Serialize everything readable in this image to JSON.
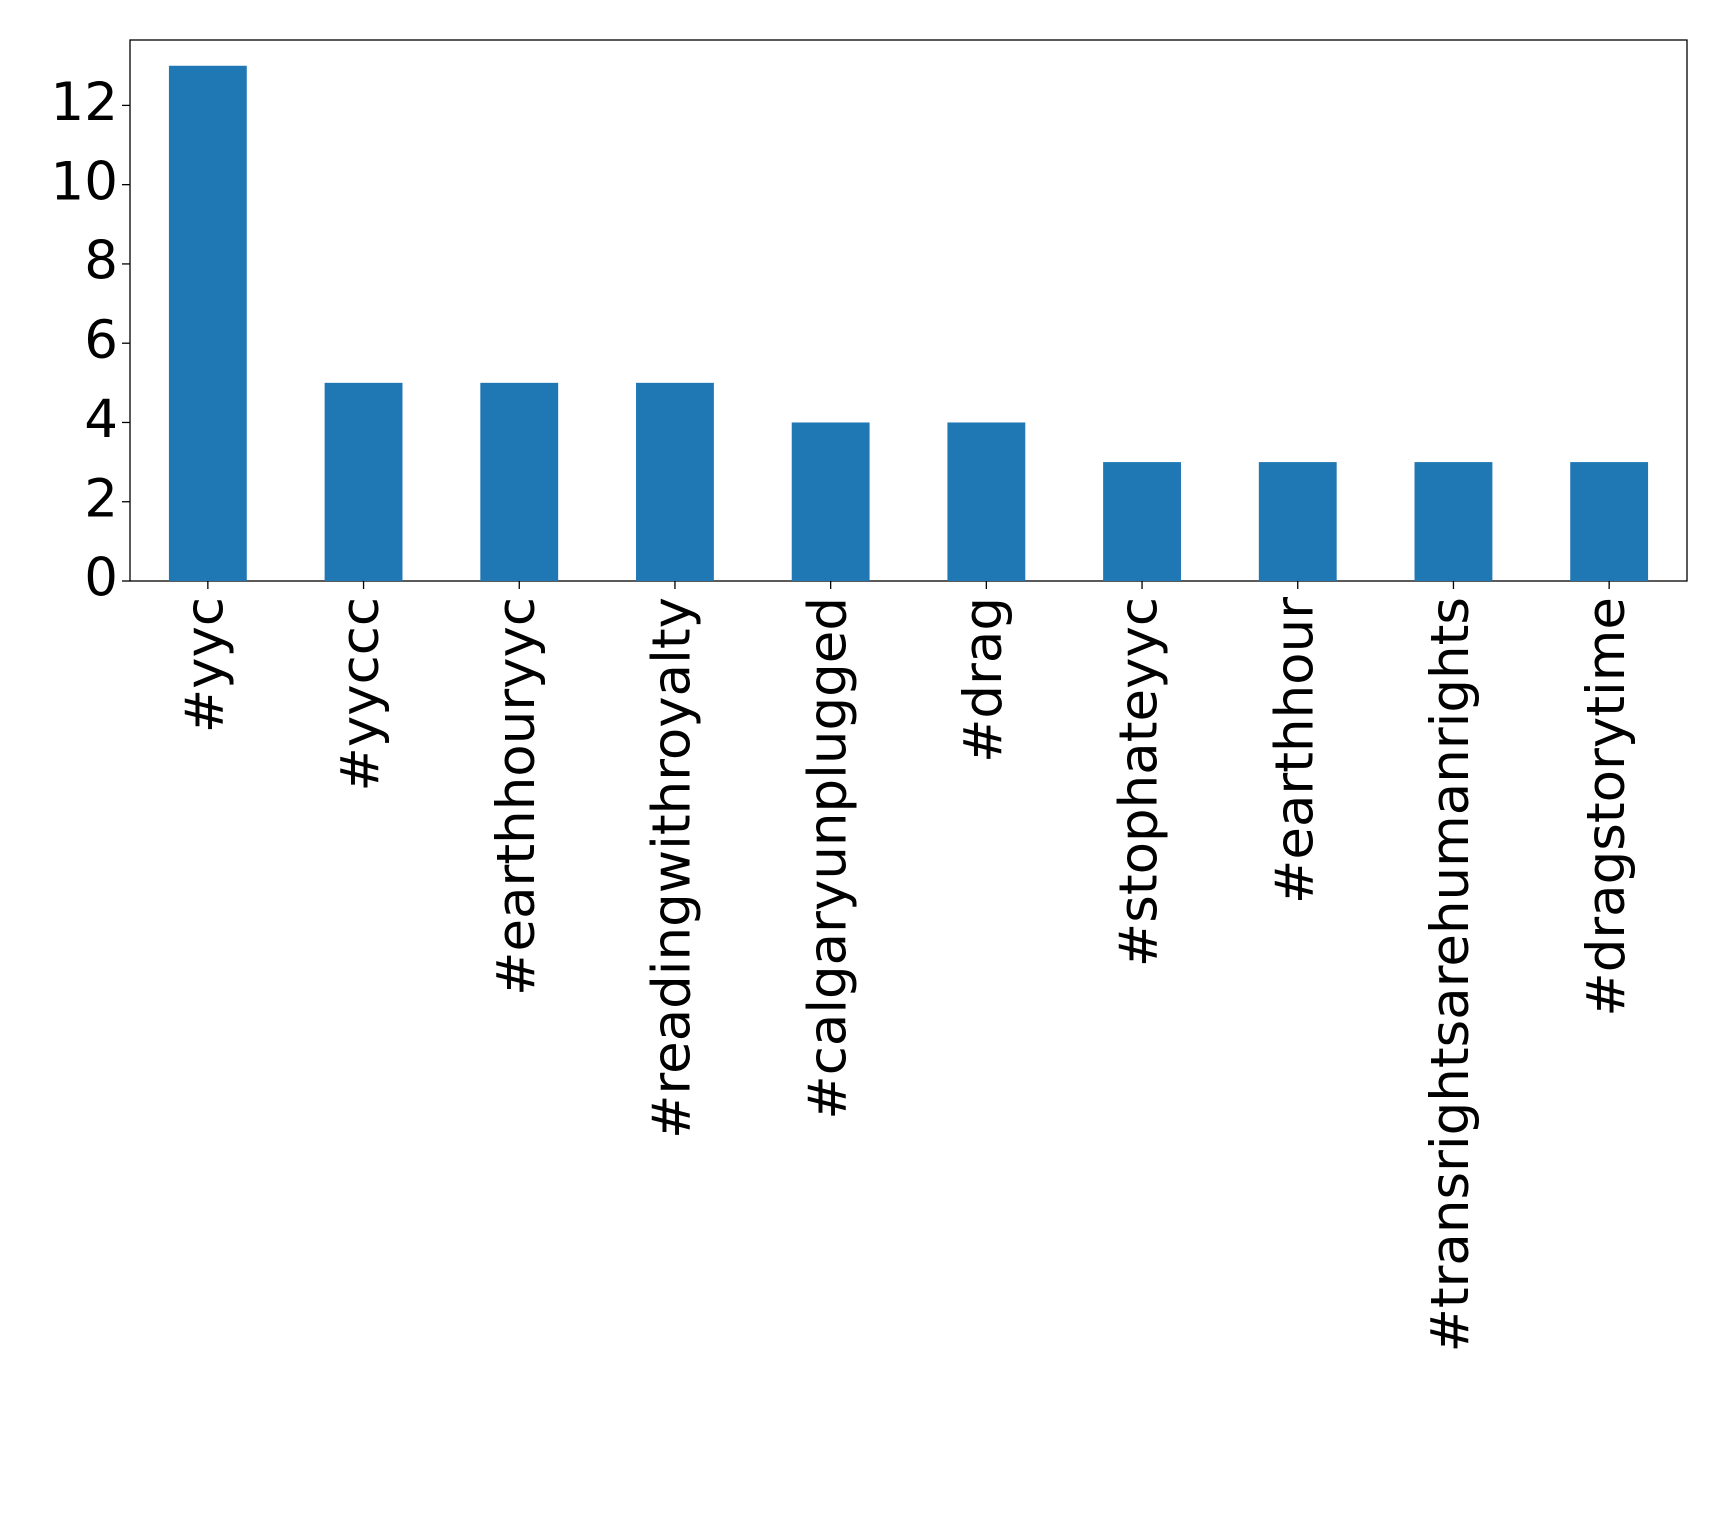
{
  "chart_data": {
    "type": "bar",
    "categories": [
      "#yyc",
      "#yyccc",
      "#earthhouryyc",
      "#readingwithroyalty",
      "#calgaryunplugged",
      "#drag",
      "#stophateyyc",
      "#earthhour",
      "#transrightsarehumanrights",
      "#dragstorytime"
    ],
    "values": [
      13,
      5,
      5,
      5,
      4,
      4,
      3,
      3,
      3,
      3
    ],
    "color": "#1f77b4",
    "ylim": [
      0,
      13.65
    ],
    "yticks": [
      0,
      2,
      4,
      6,
      8,
      10,
      12
    ],
    "grid": false
  }
}
